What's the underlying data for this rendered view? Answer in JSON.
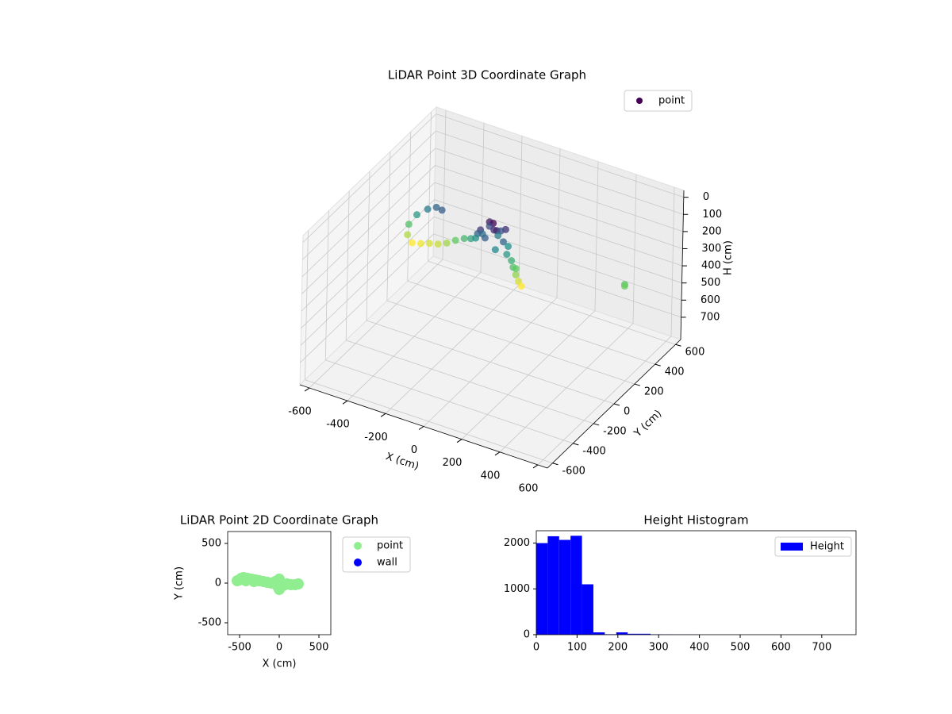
{
  "chart_data": [
    {
      "type": "scatter3d",
      "title": "LiDAR Point 3D Coordinate Graph",
      "x_label": "X (cm)",
      "y_label": "Y (cm)",
      "z_label": "H (cm)",
      "xlim": [
        -650,
        650
      ],
      "ylim": [
        -650,
        650
      ],
      "zlim": [
        830,
        -40
      ],
      "xticks": [
        -600,
        -400,
        -200,
        0,
        200,
        400,
        600
      ],
      "yticks": [
        -600,
        -400,
        -200,
        0,
        200,
        400,
        600
      ],
      "zticks": [
        0,
        100,
        200,
        300,
        400,
        500,
        600,
        700
      ],
      "colormap": "viridis",
      "legend": "upper right",
      "grid": true,
      "series": [
        {
          "name": "point",
          "x": [
            0,
            -30,
            30,
            -50,
            50,
            20,
            -20,
            60,
            -60,
            0,
            40,
            -40,
            10,
            70,
            -70,
            -300,
            -340,
            -380,
            -420,
            -440,
            -430,
            -400,
            -360,
            -320,
            -280,
            -240,
            -200,
            -160,
            -120,
            -90,
            90,
            120,
            140,
            160,
            180,
            200,
            150,
            640,
            640
          ],
          "y": [
            0,
            20,
            -20,
            -30,
            30,
            40,
            -40,
            -10,
            10,
            50,
            -50,
            40,
            -10,
            20,
            -20,
            60,
            80,
            70,
            40,
            0,
            -30,
            -40,
            -30,
            -20,
            -10,
            0,
            10,
            20,
            10,
            0,
            -30,
            -40,
            -60,
            -70,
            -80,
            -90,
            -50,
            100,
            100
          ],
          "z": [
            20,
            35,
            40,
            60,
            55,
            80,
            90,
            100,
            110,
            120,
            130,
            75,
            50,
            140,
            95,
            90,
            100,
            120,
            150,
            190,
            230,
            260,
            255,
            245,
            240,
            225,
            200,
            180,
            160,
            140,
            150,
            170,
            190,
            220,
            245,
            260,
            200,
            195,
            205
          ]
        }
      ]
    },
    {
      "type": "scatter",
      "title": "LiDAR Point 2D Coordinate Graph",
      "x_label": "X (cm)",
      "y_label": "Y (cm)",
      "xlim": [
        -650,
        650
      ],
      "ylim": [
        -650,
        650
      ],
      "xticks": [
        -500,
        0,
        500
      ],
      "yticks": [
        -500,
        0,
        500
      ],
      "legend": "outside right",
      "series": [
        {
          "name": "point",
          "color": "#90ee90",
          "x": [
            -530,
            -480,
            -450,
            -400,
            -350,
            -300,
            -250,
            -200,
            -150,
            -100,
            -50,
            0,
            0,
            20,
            -20,
            50,
            100,
            150,
            200,
            240,
            -500,
            -420,
            -320
          ],
          "y": [
            30,
            60,
            70,
            60,
            50,
            40,
            30,
            20,
            10,
            0,
            20,
            50,
            -80,
            0,
            -40,
            -30,
            -10,
            -20,
            -20,
            -10,
            40,
            30,
            20
          ]
        },
        {
          "name": "wall",
          "color": "#0000ff",
          "x": [],
          "y": []
        }
      ]
    },
    {
      "type": "histogram",
      "title": "Height Histogram",
      "xlim": [
        0,
        784
      ],
      "ylim": [
        0,
        2270
      ],
      "xticks": [
        0,
        100,
        200,
        300,
        400,
        500,
        600,
        700
      ],
      "yticks": [
        0,
        1000,
        2000
      ],
      "legend": "upper right",
      "bins": [
        0,
        28,
        56,
        84,
        112,
        140,
        168,
        196,
        224,
        252,
        280,
        308,
        336,
        364,
        392,
        420,
        448,
        476,
        504,
        532,
        560,
        588,
        616,
        644,
        672,
        700,
        728,
        756,
        784
      ],
      "series": [
        {
          "name": "Height",
          "color": "#0000ff",
          "values": [
            2000,
            2150,
            2070,
            2160,
            1100,
            50,
            10,
            50,
            20,
            20,
            8,
            5,
            4,
            3,
            2,
            2,
            1,
            1,
            1,
            1,
            1,
            1,
            1,
            1,
            1,
            1,
            1,
            1
          ]
        }
      ]
    }
  ]
}
